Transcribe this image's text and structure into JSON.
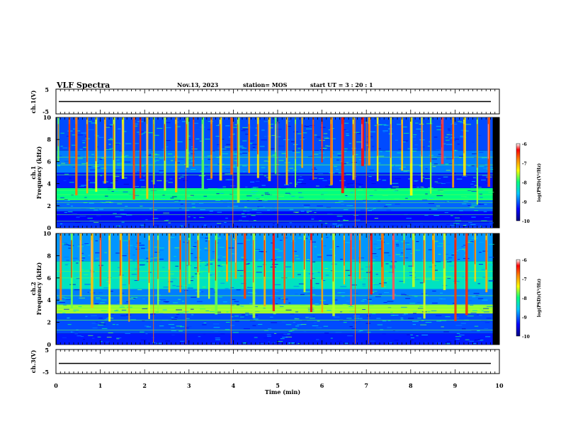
{
  "header": {
    "title": "VLF Spectra",
    "date": "Nov.13, 2023",
    "station": "station= MOS",
    "start": "start UT =  3 : 20 : 1"
  },
  "chart_data": [
    {
      "type": "line",
      "ylabel": "ch.1(V)",
      "ylim": [
        -5,
        5
      ],
      "y_ticks": [
        "5",
        "-5"
      ],
      "x": [
        0,
        10
      ],
      "values": [
        0,
        0
      ],
      "xlim": [
        0,
        10
      ]
    },
    {
      "type": "heatmap",
      "ylabel_channel": "ch.1",
      "ylabel": "Frequency (kHz)",
      "ylim": [
        0,
        10
      ],
      "y_ticks": [
        "0",
        "2",
        "4",
        "6",
        "8",
        "10"
      ],
      "xlim": [
        0,
        10
      ],
      "data_end_min": 9.85,
      "colorbar": {
        "label": "log(PSD)(V²/Hz)",
        "range": [
          -10,
          -6
        ],
        "ticks": [
          "-6",
          "-7",
          "-8",
          "-9",
          "-10"
        ],
        "colors": [
          "#000080",
          "#0000ff",
          "#00c8ff",
          "#00ff80",
          "#ffff00",
          "#ff8000",
          "#ff0000",
          "#ffffff"
        ]
      },
      "bands_khz": [
        {
          "f_low": 0,
          "f_high": 0.5,
          "level": -9.2
        },
        {
          "f_low": 0.5,
          "f_high": 1.5,
          "level": -9.4
        },
        {
          "f_low": 1.5,
          "f_high": 2.5,
          "level": -9.0
        },
        {
          "f_low": 2.5,
          "f_high": 3.6,
          "level": -8.0
        },
        {
          "f_low": 3.6,
          "f_high": 5.0,
          "level": -9.3
        },
        {
          "f_low": 5.0,
          "f_high": 7.0,
          "level": -8.9
        },
        {
          "f_low": 7.0,
          "f_high": 10.0,
          "level": -9.1
        }
      ],
      "lines_khz": [
        0.6,
        1.2,
        1.8,
        2.3,
        2.6,
        3.0,
        3.4,
        4.8,
        5.7,
        6.4
      ],
      "bursts_min": [
        0.05,
        0.3,
        0.45,
        0.7,
        0.9,
        1.1,
        1.3,
        1.5,
        1.75,
        1.9,
        2.05,
        2.2,
        2.45,
        2.7,
        2.95,
        3.1,
        3.3,
        3.5,
        3.7,
        3.95,
        4.1,
        4.35,
        4.55,
        4.8,
        4.95,
        5.2,
        5.4,
        5.55,
        5.8,
        6.0,
        6.2,
        6.45,
        6.7,
        6.9,
        7.05,
        7.25,
        7.55,
        7.8,
        8.0,
        8.25,
        8.45,
        8.7,
        8.95,
        9.2,
        9.5,
        9.75
      ],
      "spikes_min": [
        2.2,
        2.93,
        3.99,
        5.0,
        6.75,
        7.0
      ]
    },
    {
      "type": "heatmap",
      "ylabel_channel": "ch.2",
      "ylabel": "Frequency (kHz)",
      "ylim": [
        0,
        10
      ],
      "y_ticks": [
        "0",
        "2",
        "4",
        "6",
        "8",
        "10"
      ],
      "xlim": [
        0,
        10
      ],
      "data_end_min": 9.85,
      "colorbar": {
        "label": "log(PSD)(V²/Hz)",
        "range": [
          -10,
          -6
        ],
        "ticks": [
          "-6",
          "-7",
          "-8",
          "-9",
          "-10"
        ],
        "colors": [
          "#000080",
          "#0000ff",
          "#00c8ff",
          "#00ff80",
          "#ffff00",
          "#ff8000",
          "#ff0000",
          "#ffffff"
        ]
      },
      "bands_khz": [
        {
          "f_low": 0,
          "f_high": 1.0,
          "level": -9.3
        },
        {
          "f_low": 1.0,
          "f_high": 2.8,
          "level": -9.1
        },
        {
          "f_low": 2.8,
          "f_high": 3.6,
          "level": -7.6
        },
        {
          "f_low": 3.6,
          "f_high": 5.0,
          "level": -8.9
        },
        {
          "f_low": 5.0,
          "f_high": 7.5,
          "level": -8.3
        },
        {
          "f_low": 7.5,
          "f_high": 10.0,
          "level": -8.8
        }
      ],
      "lines_khz": [
        1.3,
        2.2,
        3.0,
        3.3,
        3.5,
        4.4,
        6.0,
        6.6
      ],
      "bursts_min": [
        0.1,
        0.35,
        0.55,
        0.8,
        1.0,
        1.2,
        1.45,
        1.65,
        1.85,
        2.1,
        2.3,
        2.55,
        2.8,
        3.0,
        3.2,
        3.45,
        3.6,
        3.85,
        4.05,
        4.25,
        4.45,
        4.7,
        4.9,
        5.15,
        5.35,
        5.6,
        5.75,
        6.0,
        6.25,
        6.5,
        6.65,
        6.85,
        7.1,
        7.35,
        7.6,
        7.85,
        8.05,
        8.3,
        8.5,
        8.75,
        9.0,
        9.25,
        9.45,
        9.7
      ],
      "spikes_min": [
        2.2,
        2.93,
        3.95,
        6.75,
        7.05
      ]
    },
    {
      "type": "line",
      "ylabel": "ch.3(V)",
      "ylim": [
        -5,
        5
      ],
      "y_ticks": [
        "5",
        "-5"
      ],
      "x": [
        0,
        10
      ],
      "values": [
        -1,
        -1
      ],
      "xlim": [
        0,
        10
      ],
      "xlabel": "Time (min)",
      "x_ticks": [
        "0",
        "1",
        "2",
        "3",
        "4",
        "5",
        "6",
        "7",
        "8",
        "9",
        "10"
      ]
    }
  ]
}
